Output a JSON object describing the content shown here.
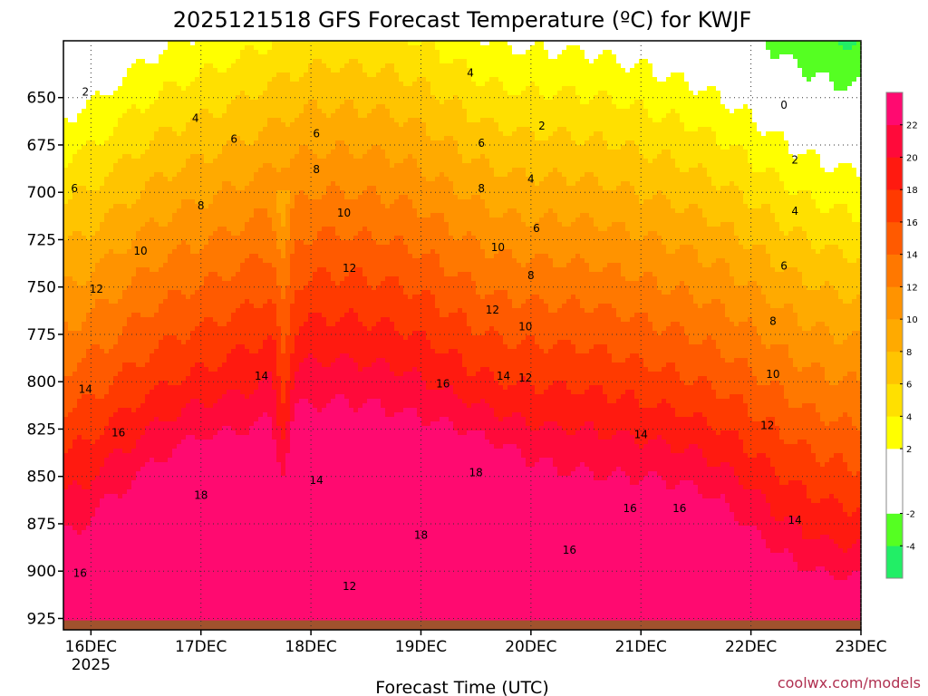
{
  "chart_data": {
    "type": "heatmap",
    "title": "2025121518 GFS Forecast Temperature (ºC) for KWJF",
    "xlabel": "Forecast Time (UTC)",
    "ylabel": "",
    "x_ticks": [
      "16DEC",
      "17DEC",
      "18DEC",
      "19DEC",
      "20DEC",
      "21DEC",
      "22DEC",
      "23DEC"
    ],
    "x_year": "2025",
    "y_ticks": [
      650,
      675,
      700,
      725,
      750,
      775,
      800,
      825,
      850,
      875,
      900,
      925
    ],
    "ylim": [
      931,
      620
    ],
    "xlim_days": [
      -0.25,
      7.0
    ],
    "colorbar": {
      "levels": [
        -6,
        -4,
        -2,
        0,
        2,
        4,
        6,
        8,
        10,
        12,
        14,
        16,
        18,
        20,
        22,
        24
      ],
      "labels": [
        "-4",
        "-2",
        "2",
        "4",
        "6",
        "8",
        "10",
        "12",
        "14",
        "16",
        "18",
        "20",
        "22"
      ],
      "colors": [
        "#22ee66",
        "#55ff22",
        "#ffffff",
        "#ffffff",
        "#ffff00",
        "#ffe000",
        "#ffc400",
        "#ffaa00",
        "#ff9300",
        "#ff7800",
        "#ff5a00",
        "#ff3a00",
        "#ff1a10",
        "#ff0a3a",
        "#ff0a70"
      ]
    },
    "contour_labels": [
      {
        "text": "2",
        "day": -0.05,
        "p": 647
      },
      {
        "text": "2",
        "day": 4.1,
        "p": 665
      },
      {
        "text": "2",
        "day": 6.4,
        "p": 683
      },
      {
        "text": "0",
        "day": 6.3,
        "p": 654
      },
      {
        "text": "4",
        "day": 0.95,
        "p": 661
      },
      {
        "text": "4",
        "day": 3.45,
        "p": 637
      },
      {
        "text": "4",
        "day": 4.0,
        "p": 693
      },
      {
        "text": "4",
        "day": 6.4,
        "p": 710
      },
      {
        "text": "6",
        "day": -0.15,
        "p": 698
      },
      {
        "text": "6",
        "day": 1.3,
        "p": 672
      },
      {
        "text": "6",
        "day": 2.05,
        "p": 669
      },
      {
        "text": "6",
        "day": 3.55,
        "p": 674
      },
      {
        "text": "6",
        "day": 4.05,
        "p": 719
      },
      {
        "text": "6",
        "day": 6.3,
        "p": 739
      },
      {
        "text": "8",
        "day": 1.0,
        "p": 707
      },
      {
        "text": "8",
        "day": 2.05,
        "p": 688
      },
      {
        "text": "8",
        "day": 3.55,
        "p": 698
      },
      {
        "text": "8",
        "day": 4.0,
        "p": 744
      },
      {
        "text": "8",
        "day": 6.2,
        "p": 768
      },
      {
        "text": "10",
        "day": 0.45,
        "p": 731
      },
      {
        "text": "10",
        "day": 2.3,
        "p": 711
      },
      {
        "text": "10",
        "day": 3.7,
        "p": 729
      },
      {
        "text": "10",
        "day": 3.95,
        "p": 771
      },
      {
        "text": "10",
        "day": 6.2,
        "p": 796
      },
      {
        "text": "12",
        "day": 0.05,
        "p": 751
      },
      {
        "text": "12",
        "day": 2.35,
        "p": 740
      },
      {
        "text": "12",
        "day": 3.65,
        "p": 762
      },
      {
        "text": "12",
        "day": 3.95,
        "p": 798
      },
      {
        "text": "12",
        "day": 6.15,
        "p": 823
      },
      {
        "text": "12",
        "day": 2.35,
        "p": 908
      },
      {
        "text": "14",
        "day": -0.05,
        "p": 804
      },
      {
        "text": "14",
        "day": 1.55,
        "p": 797
      },
      {
        "text": "14",
        "day": 2.05,
        "p": 852
      },
      {
        "text": "14",
        "day": 3.75,
        "p": 797
      },
      {
        "text": "14",
        "day": 5.0,
        "p": 828
      },
      {
        "text": "14",
        "day": 6.4,
        "p": 873
      },
      {
        "text": "16",
        "day": 0.25,
        "p": 827
      },
      {
        "text": "16",
        "day": 3.2,
        "p": 801
      },
      {
        "text": "16",
        "day": -0.1,
        "p": 901
      },
      {
        "text": "16",
        "day": 4.35,
        "p": 889
      },
      {
        "text": "16",
        "day": 4.9,
        "p": 867
      },
      {
        "text": "16",
        "day": 5.35,
        "p": 867
      },
      {
        "text": "18",
        "day": 1.0,
        "p": 860
      },
      {
        "text": "18",
        "day": 3.5,
        "p": 848
      },
      {
        "text": "18",
        "day": 3.0,
        "p": 881
      }
    ],
    "ground_level_hpa": 926,
    "source": "coolwx.com/models"
  }
}
